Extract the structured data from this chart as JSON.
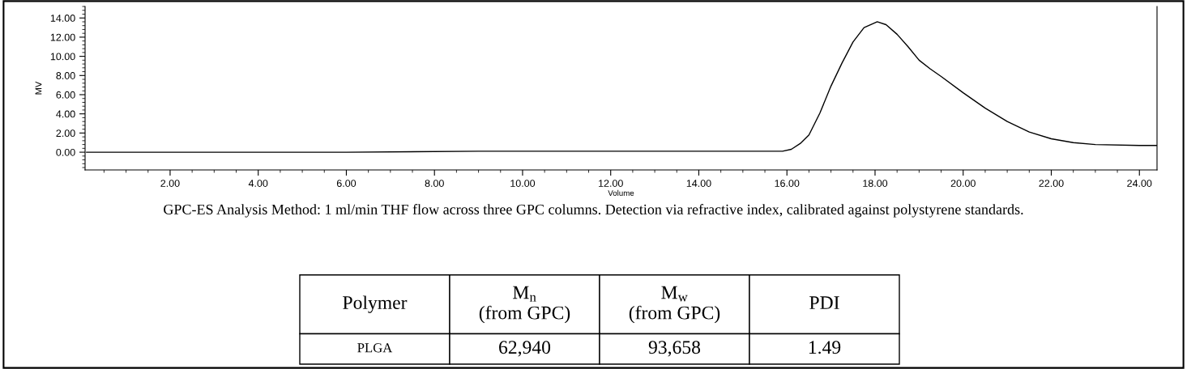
{
  "chart_data": {
    "type": "line",
    "xlabel": "Volume",
    "ylabel": "MV",
    "x": [
      0.1,
      3,
      6,
      9,
      12,
      15,
      15.9,
      16.1,
      16.3,
      16.5,
      16.75,
      17,
      17.25,
      17.5,
      17.75,
      18.05,
      18.25,
      18.5,
      18.75,
      19,
      19.25,
      19.5,
      20,
      20.5,
      21,
      21.5,
      22,
      22.5,
      23,
      24,
      24.4
    ],
    "series": [
      {
        "color": "#000000",
        "values": [
          0.0,
          0.0,
          0.0,
          0.1,
          0.1,
          0.1,
          0.1,
          0.3,
          0.9,
          1.8,
          4.1,
          6.9,
          9.3,
          11.5,
          13.0,
          13.6,
          13.3,
          12.3,
          11.0,
          9.6,
          8.7,
          7.9,
          6.2,
          4.6,
          3.2,
          2.1,
          1.4,
          1.0,
          0.8,
          0.7,
          0.7
        ]
      }
    ],
    "xlim": [
      0.07,
      24.4
    ],
    "ylim": [
      -1.85,
      15.2
    ],
    "xticks": [
      {
        "value": 2,
        "label": "2.00"
      },
      {
        "value": 4,
        "label": "4.00"
      },
      {
        "value": 6,
        "label": "6.00"
      },
      {
        "value": 8,
        "label": "8.00"
      },
      {
        "value": 10,
        "label": "10.00"
      },
      {
        "value": 12,
        "label": "12.00"
      },
      {
        "value": 14,
        "label": "14.00"
      },
      {
        "value": 16,
        "label": "16.00"
      },
      {
        "value": 18,
        "label": "18.00"
      },
      {
        "value": 20,
        "label": "20.00"
      },
      {
        "value": 22,
        "label": "22.00"
      },
      {
        "value": 24,
        "label": "24.00"
      }
    ],
    "yticks": [
      {
        "value": 0,
        "label": "0.00"
      },
      {
        "value": 2,
        "label": "2.00"
      },
      {
        "value": 4,
        "label": "4.00"
      },
      {
        "value": 6,
        "label": "6.00"
      },
      {
        "value": 8,
        "label": "8.00"
      },
      {
        "value": 10,
        "label": "10.00"
      },
      {
        "value": 12,
        "label": "12.00"
      },
      {
        "value": 14,
        "label": "14.00"
      }
    ],
    "grid": false,
    "legend": false,
    "marker": "none",
    "line_style": "solid",
    "annotations": [
      "GPC-ES Analysis Method: 1 ml/min THF flow across three GPC columns. Detection via refractive index, calibrated against polystyrene standards.",
      "Polymer",
      "M$_{n}$ (from GPC)",
      "M$_{w}$ (from GPC)",
      "PDI",
      "PLGA",
      "62,940",
      "93,658",
      "1.49"
    ]
  }
}
